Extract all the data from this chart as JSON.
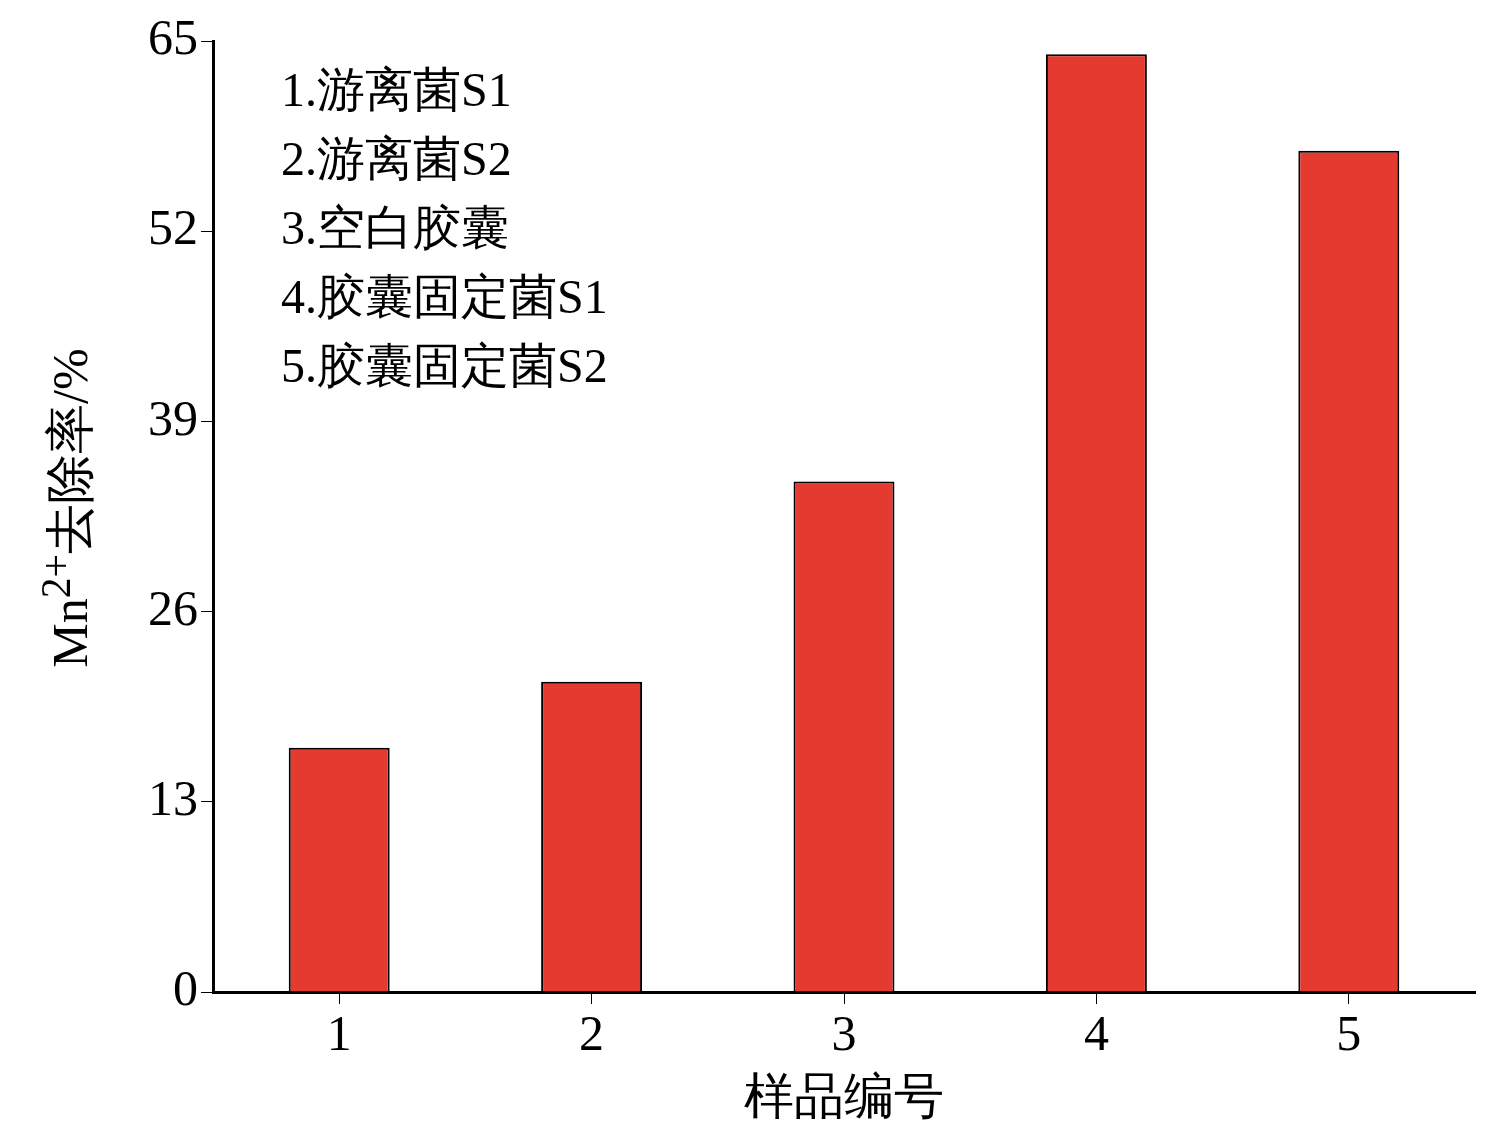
{
  "chart_data": {
    "type": "bar",
    "xlabel": "样品编号",
    "ylabel": "Mn$^{2+}$去除率/%",
    "categories": [
      "1",
      "2",
      "3",
      "4",
      "5"
    ],
    "series": [
      {
        "color": "#e53a30",
        "values": [
          16.7,
          21.2,
          34.9,
          64.1,
          57.5
        ]
      }
    ],
    "ylim": [
      0,
      65
    ],
    "yticks": [
      0,
      13,
      26,
      39,
      52,
      65
    ],
    "grid": false,
    "legend": false,
    "annotations": [
      "1.游离菌S1",
      "2.游离菌S2",
      "3.空白胶囊",
      "4.胶囊固定菌S1",
      "5.胶囊固定菌S2"
    ]
  }
}
